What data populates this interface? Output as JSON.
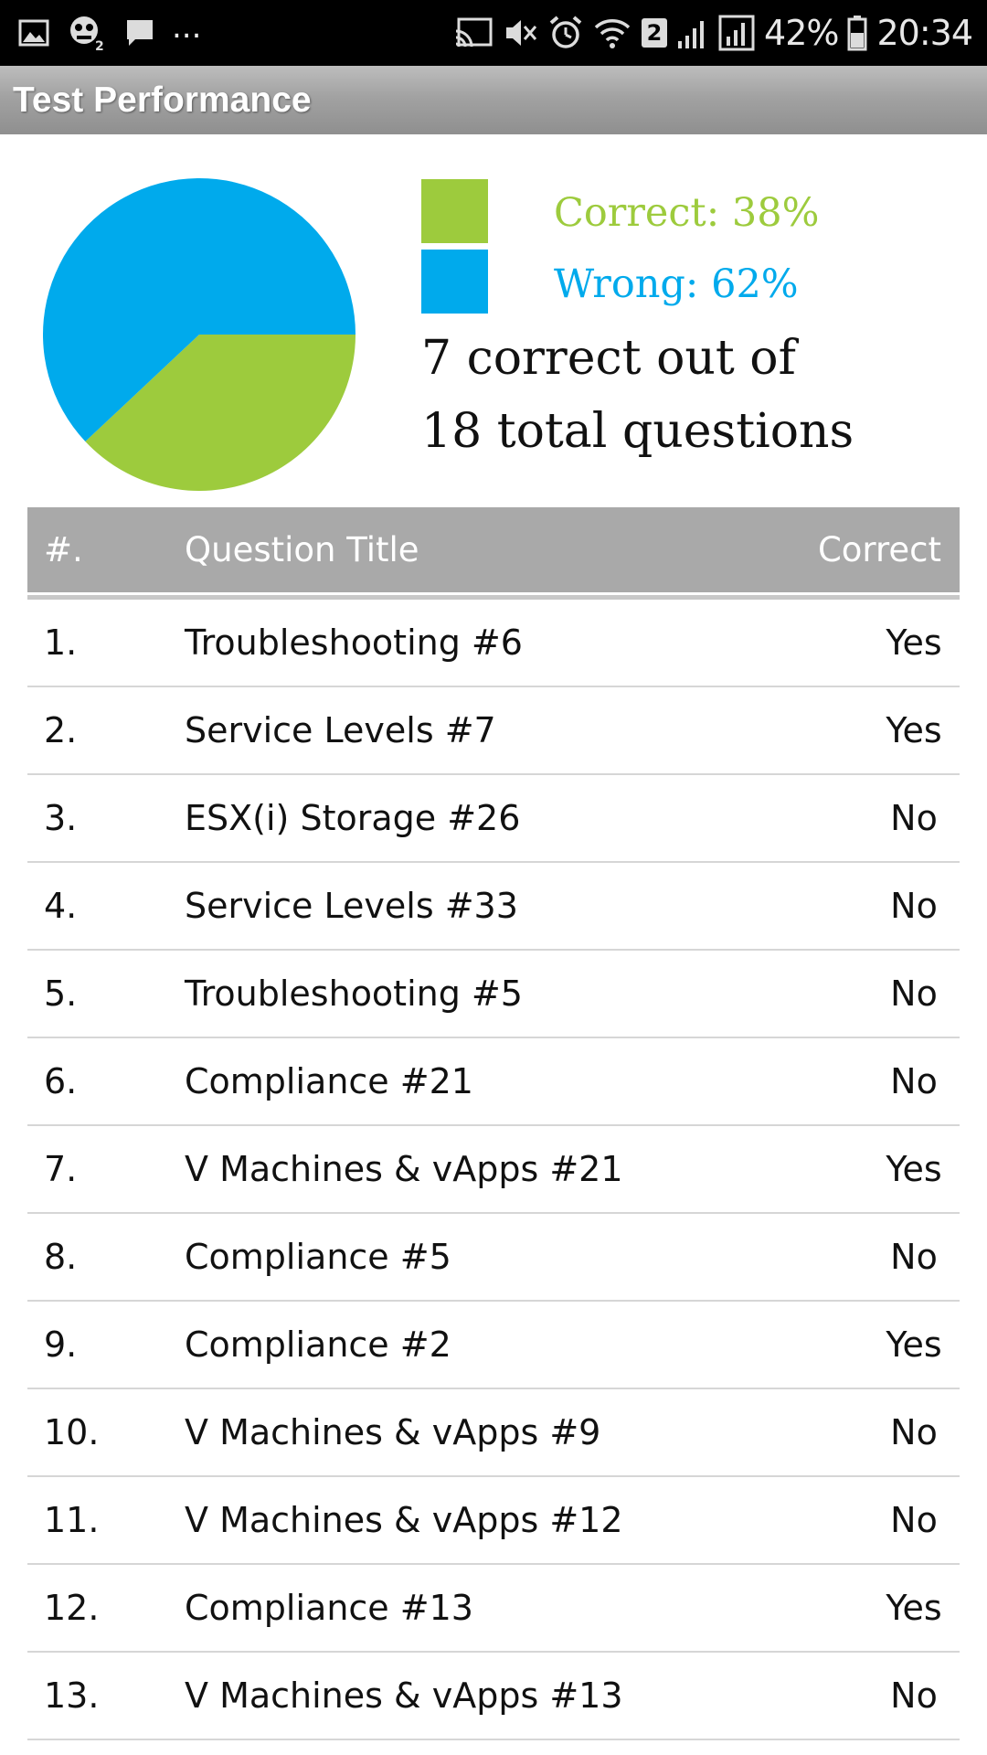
{
  "status_bar": {
    "icons": [
      "gallery-icon",
      "game-icon",
      "message-icon",
      "cast-icon",
      "mute-icon",
      "alarm-icon",
      "wifi-icon",
      "sim-2-icon",
      "signal-icon",
      "signal-icon",
      "battery-icon"
    ],
    "more": "...",
    "sim_badge": "2",
    "battery": "42%",
    "time": "20:34"
  },
  "app_bar": {
    "title": "Test Performance",
    "background": "#a0a0a0"
  },
  "chart_data": {
    "type": "pie",
    "slices": [
      {
        "name": "Correct",
        "value": 38,
        "color": "#9dcb3d"
      },
      {
        "name": "Wrong",
        "value": 62,
        "color": "#00aaec"
      }
    ],
    "legend": {
      "correct_label": "Correct: 38%",
      "wrong_label": "Wrong: 62%",
      "placement": "right"
    }
  },
  "summary": {
    "line_1": "7 correct out of",
    "line_2": "18 total questions"
  },
  "table": {
    "headers": {
      "number": "#.",
      "title": "Question Title",
      "correct": "Correct"
    },
    "rows": [
      {
        "number": "1.",
        "title": "Troubleshooting #6",
        "correct": "Yes"
      },
      {
        "number": "2.",
        "title": "Service Levels #7",
        "correct": "Yes"
      },
      {
        "number": "3.",
        "title": "ESX(i) Storage #26",
        "correct": "No"
      },
      {
        "number": "4.",
        "title": "Service Levels #33",
        "correct": "No"
      },
      {
        "number": "5.",
        "title": "Troubleshooting #5",
        "correct": "No"
      },
      {
        "number": "6.",
        "title": "Compliance #21",
        "correct": "No"
      },
      {
        "number": "7.",
        "title": "V Machines & vApps #21",
        "correct": "Yes"
      },
      {
        "number": "8.",
        "title": "Compliance #5",
        "correct": "No"
      },
      {
        "number": "9.",
        "title": "Compliance #2",
        "correct": "Yes"
      },
      {
        "number": "10.",
        "title": "V Machines & vApps #9",
        "correct": "No"
      },
      {
        "number": "11.",
        "title": "V Machines & vApps #12",
        "correct": "No"
      },
      {
        "number": "12.",
        "title": "Compliance #13",
        "correct": "Yes"
      },
      {
        "number": "13.",
        "title": "V Machines & vApps #13",
        "correct": "No"
      }
    ]
  }
}
